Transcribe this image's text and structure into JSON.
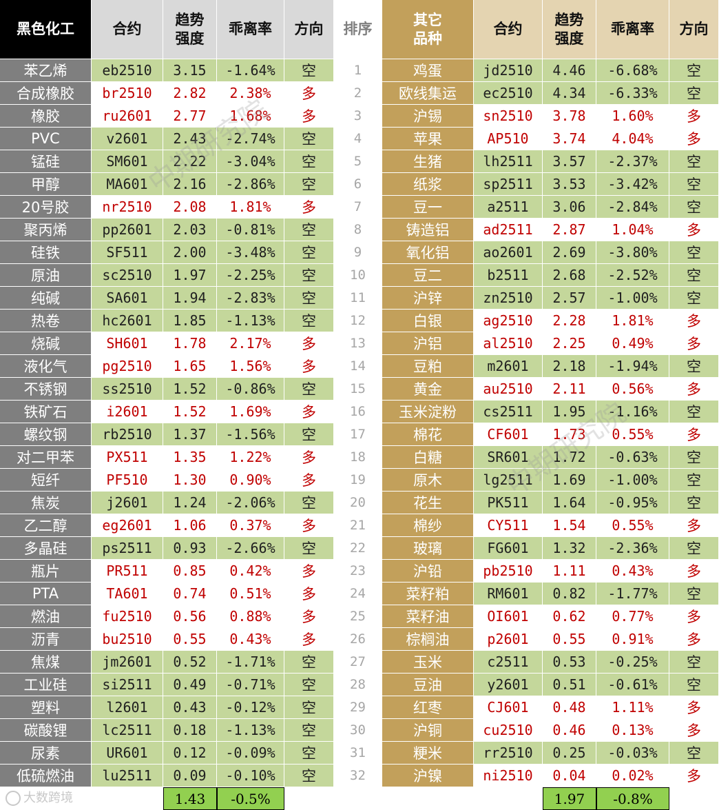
{
  "headers": {
    "left_group": "黑色化工",
    "contract": "合约",
    "trend_strength": "趋势\n强度",
    "deviation": "乖离率",
    "direction": "方向",
    "rank": "排序",
    "right_group": "其它\n品种"
  },
  "colors": {
    "short_bg": "#c4d79b",
    "long_text": "#c00000",
    "left_name_bg": "#7f7f7f",
    "right_name_bg": "#c2a05b",
    "average_bg": "#92d050"
  },
  "rows": [
    {
      "rank": "1",
      "left": {
        "name": "苯乙烯",
        "contract": "eb2510",
        "strength": "3.15",
        "deviation": "-1.64%",
        "direction": "空"
      },
      "right": {
        "name": "鸡蛋",
        "contract": "jd2510",
        "strength": "4.46",
        "deviation": "-6.68%",
        "direction": "空"
      }
    },
    {
      "rank": "2",
      "left": {
        "name": "合成橡胶",
        "contract": "br2510",
        "strength": "2.82",
        "deviation": "2.38%",
        "direction": "多"
      },
      "right": {
        "name": "欧线集运",
        "contract": "ec2510",
        "strength": "4.34",
        "deviation": "-6.33%",
        "direction": "空"
      }
    },
    {
      "rank": "3",
      "left": {
        "name": "橡胶",
        "contract": "ru2601",
        "strength": "2.77",
        "deviation": "1.68%",
        "direction": "多"
      },
      "right": {
        "name": "沪锡",
        "contract": "sn2510",
        "strength": "3.78",
        "deviation": "1.60%",
        "direction": "多"
      }
    },
    {
      "rank": "4",
      "left": {
        "name": "PVC",
        "contract": "v2601",
        "strength": "2.43",
        "deviation": "-2.74%",
        "direction": "空"
      },
      "right": {
        "name": "苹果",
        "contract": "AP510",
        "strength": "3.74",
        "deviation": "4.04%",
        "direction": "多"
      }
    },
    {
      "rank": "5",
      "left": {
        "name": "锰硅",
        "contract": "SM601",
        "strength": "2.22",
        "deviation": "-3.04%",
        "direction": "空"
      },
      "right": {
        "name": "生猪",
        "contract": "lh2511",
        "strength": "3.57",
        "deviation": "-2.37%",
        "direction": "空"
      }
    },
    {
      "rank": "6",
      "left": {
        "name": "甲醇",
        "contract": "MA601",
        "strength": "2.16",
        "deviation": "-2.86%",
        "direction": "空"
      },
      "right": {
        "name": "纸浆",
        "contract": "sp2511",
        "strength": "3.53",
        "deviation": "-3.42%",
        "direction": "空"
      }
    },
    {
      "rank": "7",
      "left": {
        "name": "20号胶",
        "contract": "nr2510",
        "strength": "2.08",
        "deviation": "1.81%",
        "direction": "多"
      },
      "right": {
        "name": "豆一",
        "contract": "a2511",
        "strength": "3.06",
        "deviation": "-2.84%",
        "direction": "空"
      }
    },
    {
      "rank": "8",
      "left": {
        "name": "聚丙烯",
        "contract": "pp2601",
        "strength": "2.03",
        "deviation": "-0.81%",
        "direction": "空"
      },
      "right": {
        "name": "铸造铝",
        "contract": "ad2511",
        "strength": "2.87",
        "deviation": "1.04%",
        "direction": "多"
      }
    },
    {
      "rank": "9",
      "left": {
        "name": "硅铁",
        "contract": "SF511",
        "strength": "2.00",
        "deviation": "-3.48%",
        "direction": "空"
      },
      "right": {
        "name": "氧化铝",
        "contract": "ao2601",
        "strength": "2.69",
        "deviation": "-3.80%",
        "direction": "空"
      }
    },
    {
      "rank": "10",
      "left": {
        "name": "原油",
        "contract": "sc2510",
        "strength": "1.97",
        "deviation": "-2.25%",
        "direction": "空"
      },
      "right": {
        "name": "豆二",
        "contract": "b2511",
        "strength": "2.68",
        "deviation": "-2.52%",
        "direction": "空"
      }
    },
    {
      "rank": "11",
      "left": {
        "name": "纯碱",
        "contract": "SA601",
        "strength": "1.94",
        "deviation": "-2.83%",
        "direction": "空"
      },
      "right": {
        "name": "沪锌",
        "contract": "zn2510",
        "strength": "2.57",
        "deviation": "-1.00%",
        "direction": "空"
      }
    },
    {
      "rank": "12",
      "left": {
        "name": "热卷",
        "contract": "hc2601",
        "strength": "1.85",
        "deviation": "-1.13%",
        "direction": "空"
      },
      "right": {
        "name": "白银",
        "contract": "ag2510",
        "strength": "2.28",
        "deviation": "1.81%",
        "direction": "多"
      }
    },
    {
      "rank": "13",
      "left": {
        "name": "烧碱",
        "contract": "SH601",
        "strength": "1.78",
        "deviation": "2.17%",
        "direction": "多"
      },
      "right": {
        "name": "沪铝",
        "contract": "al2510",
        "strength": "2.25",
        "deviation": "0.49%",
        "direction": "多"
      }
    },
    {
      "rank": "14",
      "left": {
        "name": "液化气",
        "contract": "pg2510",
        "strength": "1.65",
        "deviation": "1.56%",
        "direction": "多"
      },
      "right": {
        "name": "豆粕",
        "contract": "m2601",
        "strength": "2.18",
        "deviation": "-1.94%",
        "direction": "空"
      }
    },
    {
      "rank": "15",
      "left": {
        "name": "不锈钢",
        "contract": "ss2510",
        "strength": "1.52",
        "deviation": "-0.86%",
        "direction": "空"
      },
      "right": {
        "name": "黄金",
        "contract": "au2510",
        "strength": "2.11",
        "deviation": "0.56%",
        "direction": "多"
      }
    },
    {
      "rank": "16",
      "left": {
        "name": "铁矿石",
        "contract": "i2601",
        "strength": "1.52",
        "deviation": "1.69%",
        "direction": "多"
      },
      "right": {
        "name": "玉米淀粉",
        "contract": "cs2511",
        "strength": "1.95",
        "deviation": "-1.16%",
        "direction": "空"
      }
    },
    {
      "rank": "17",
      "left": {
        "name": "螺纹钢",
        "contract": "rb2510",
        "strength": "1.37",
        "deviation": "-1.56%",
        "direction": "空"
      },
      "right": {
        "name": "棉花",
        "contract": "CF601",
        "strength": "1.73",
        "deviation": "0.55%",
        "direction": "多"
      }
    },
    {
      "rank": "18",
      "left": {
        "name": "对二甲苯",
        "contract": "PX511",
        "strength": "1.35",
        "deviation": "1.22%",
        "direction": "多"
      },
      "right": {
        "name": "白糖",
        "contract": "SR601",
        "strength": "1.72",
        "deviation": "-0.63%",
        "direction": "空"
      }
    },
    {
      "rank": "19",
      "left": {
        "name": "短纤",
        "contract": "PF510",
        "strength": "1.30",
        "deviation": "0.90%",
        "direction": "多"
      },
      "right": {
        "name": "原木",
        "contract": "lg2511",
        "strength": "1.69",
        "deviation": "-1.00%",
        "direction": "空"
      }
    },
    {
      "rank": "20",
      "left": {
        "name": "焦炭",
        "contract": "j2601",
        "strength": "1.24",
        "deviation": "-2.06%",
        "direction": "空"
      },
      "right": {
        "name": "花生",
        "contract": "PK511",
        "strength": "1.64",
        "deviation": "-0.95%",
        "direction": "空"
      }
    },
    {
      "rank": "21",
      "left": {
        "name": "乙二醇",
        "contract": "eg2601",
        "strength": "1.06",
        "deviation": "0.37%",
        "direction": "多"
      },
      "right": {
        "name": "棉纱",
        "contract": "CY511",
        "strength": "1.54",
        "deviation": "0.55%",
        "direction": "多"
      }
    },
    {
      "rank": "22",
      "left": {
        "name": "多晶硅",
        "contract": "ps2511",
        "strength": "0.93",
        "deviation": "-2.66%",
        "direction": "空"
      },
      "right": {
        "name": "玻璃",
        "contract": "FG601",
        "strength": "1.32",
        "deviation": "-2.36%",
        "direction": "空"
      }
    },
    {
      "rank": "23",
      "left": {
        "name": "瓶片",
        "contract": "PR511",
        "strength": "0.85",
        "deviation": "0.42%",
        "direction": "多"
      },
      "right": {
        "name": "沪铅",
        "contract": "pb2510",
        "strength": "1.11",
        "deviation": "0.43%",
        "direction": "多"
      }
    },
    {
      "rank": "24",
      "left": {
        "name": "PTA",
        "contract": "TA601",
        "strength": "0.74",
        "deviation": "0.51%",
        "direction": "多"
      },
      "right": {
        "name": "菜籽粕",
        "contract": "RM601",
        "strength": "0.82",
        "deviation": "-1.77%",
        "direction": "空"
      }
    },
    {
      "rank": "25",
      "left": {
        "name": "燃油",
        "contract": "fu2510",
        "strength": "0.56",
        "deviation": "0.88%",
        "direction": "多"
      },
      "right": {
        "name": "菜籽油",
        "contract": "OI601",
        "strength": "0.62",
        "deviation": "0.77%",
        "direction": "多"
      }
    },
    {
      "rank": "26",
      "left": {
        "name": "沥青",
        "contract": "bu2510",
        "strength": "0.55",
        "deviation": "0.43%",
        "direction": "多"
      },
      "right": {
        "name": "棕榈油",
        "contract": "p2601",
        "strength": "0.55",
        "deviation": "0.91%",
        "direction": "多"
      }
    },
    {
      "rank": "27",
      "left": {
        "name": "焦煤",
        "contract": "jm2601",
        "strength": "0.52",
        "deviation": "-1.71%",
        "direction": "空"
      },
      "right": {
        "name": "玉米",
        "contract": "c2511",
        "strength": "0.53",
        "deviation": "-0.25%",
        "direction": "空"
      }
    },
    {
      "rank": "28",
      "left": {
        "name": "工业硅",
        "contract": "si2511",
        "strength": "0.49",
        "deviation": "-0.71%",
        "direction": "空"
      },
      "right": {
        "name": "豆油",
        "contract": "y2601",
        "strength": "0.51",
        "deviation": "-0.61%",
        "direction": "空"
      }
    },
    {
      "rank": "29",
      "left": {
        "name": "塑料",
        "contract": "l2601",
        "strength": "0.43",
        "deviation": "-0.12%",
        "direction": "空"
      },
      "right": {
        "name": "红枣",
        "contract": "CJ601",
        "strength": "0.48",
        "deviation": "1.11%",
        "direction": "多"
      }
    },
    {
      "rank": "30",
      "left": {
        "name": "碳酸锂",
        "contract": "lc2511",
        "strength": "0.18",
        "deviation": "-1.13%",
        "direction": "空"
      },
      "right": {
        "name": "沪铜",
        "contract": "cu2510",
        "strength": "0.46",
        "deviation": "0.13%",
        "direction": "多"
      }
    },
    {
      "rank": "31",
      "left": {
        "name": "尿素",
        "contract": "UR601",
        "strength": "0.12",
        "deviation": "-0.09%",
        "direction": "空"
      },
      "right": {
        "name": "粳米",
        "contract": "rr2510",
        "strength": "0.25",
        "deviation": "-0.03%",
        "direction": "空"
      }
    },
    {
      "rank": "32",
      "left": {
        "name": "低硫燃油",
        "contract": "lu2511",
        "strength": "0.09",
        "deviation": "-0.10%",
        "direction": "空"
      },
      "right": {
        "name": "沪镍",
        "contract": "ni2510",
        "strength": "0.04",
        "deviation": "0.02%",
        "direction": "多"
      }
    }
  ],
  "averages": {
    "left": {
      "strength": "1.43",
      "deviation": "-0.5%"
    },
    "right": {
      "strength": "1.97",
      "deviation": "-0.8%"
    }
  },
  "watermark": "中期研究院",
  "footer_logo": "大数跨境"
}
